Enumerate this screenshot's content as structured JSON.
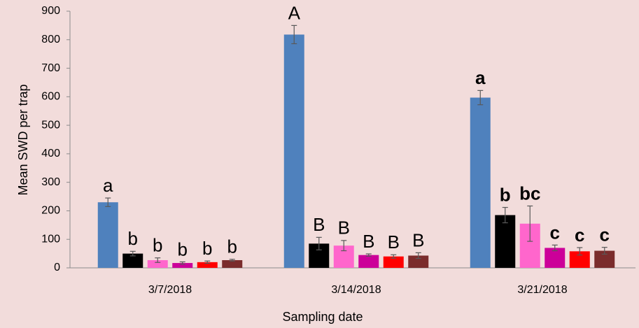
{
  "chart_data": {
    "type": "bar",
    "x_label": "Sampling date",
    "y_label": "Mean SWD per trap",
    "categories": [
      "3/7/2018",
      "3/14/2018",
      "3/21/2018"
    ],
    "ylim": [
      0,
      900
    ],
    "yticks": [
      0,
      100,
      200,
      300,
      400,
      500,
      600,
      700,
      800,
      900
    ],
    "grid": false,
    "letter_weight": [
      "normal",
      "normal",
      "bold"
    ],
    "series": [
      {
        "color": "#4f81bd",
        "values": [
          230,
          818,
          597
        ],
        "errors": [
          15,
          32,
          25
        ],
        "letters": [
          "a",
          "A",
          "a"
        ]
      },
      {
        "color": "#000000",
        "values": [
          50,
          85,
          185
        ],
        "errors": [
          8,
          22,
          27
        ],
        "letters": [
          "b",
          "B",
          "b"
        ]
      },
      {
        "color": "#ff66cc",
        "values": [
          27,
          78,
          155
        ],
        "errors": [
          8,
          18,
          62
        ],
        "letters": [
          "b",
          "B",
          "bc"
        ]
      },
      {
        "color": "#cc0099",
        "values": [
          17,
          45,
          70
        ],
        "errors": [
          4,
          4,
          10
        ],
        "letters": [
          "b",
          "B",
          "c"
        ]
      },
      {
        "color": "#ff0000",
        "values": [
          20,
          40,
          58
        ],
        "errors": [
          4,
          6,
          13
        ],
        "letters": [
          "b",
          "B",
          "c"
        ]
      },
      {
        "color": "#7b2c2c",
        "values": [
          27,
          43,
          60
        ],
        "errors": [
          3,
          10,
          12
        ],
        "letters": [
          "b",
          "B",
          "c"
        ]
      }
    ]
  }
}
